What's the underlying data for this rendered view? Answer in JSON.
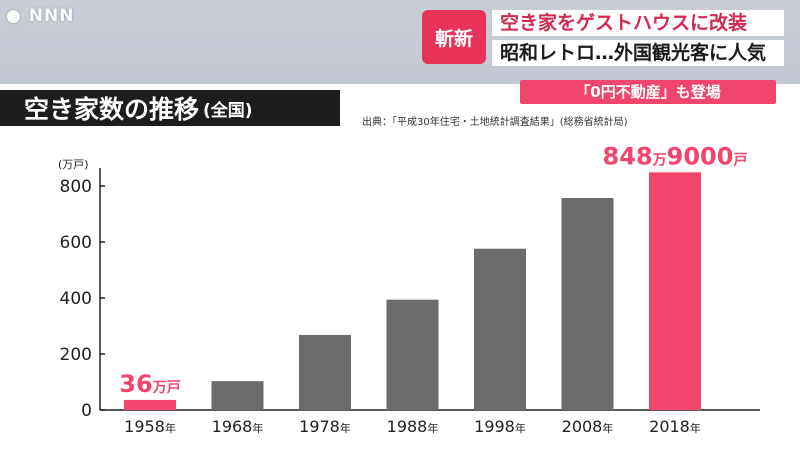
{
  "watermark": "NNN",
  "ticker": {
    "badge": "斬新",
    "headline1": "空き家をゲストハウスに改装",
    "headline2": "昭和レトロ…外国観光客に人気",
    "subline": "「0円不動産」も登場"
  },
  "colors": {
    "accent": "#f0466b",
    "bar": "#6b6b6b",
    "title_bg": "#1d1d1d"
  },
  "chart_data": {
    "type": "bar",
    "title": "空き家数の推移",
    "subtitle": "(全国)",
    "source": "出典：「平成30年住宅・土地統計調査結果」(総務省統計局)",
    "unit_label": "(万戸)",
    "categories": [
      "1958年",
      "1968年",
      "1978年",
      "1988年",
      "1998年",
      "2008年",
      "2018年"
    ],
    "values": [
      36,
      103,
      268,
      394,
      576,
      757,
      848.9
    ],
    "highlight_indices": [
      0,
      6
    ],
    "yticks": [
      0,
      200,
      400,
      600,
      800
    ],
    "ylim": [
      0,
      900
    ],
    "annotations": [
      {
        "category_index": 0,
        "number": "36",
        "unit": "万戸"
      },
      {
        "category_index": 6,
        "number": "848",
        "middle": "万",
        "number2": "9000",
        "unit": "戸"
      }
    ]
  }
}
